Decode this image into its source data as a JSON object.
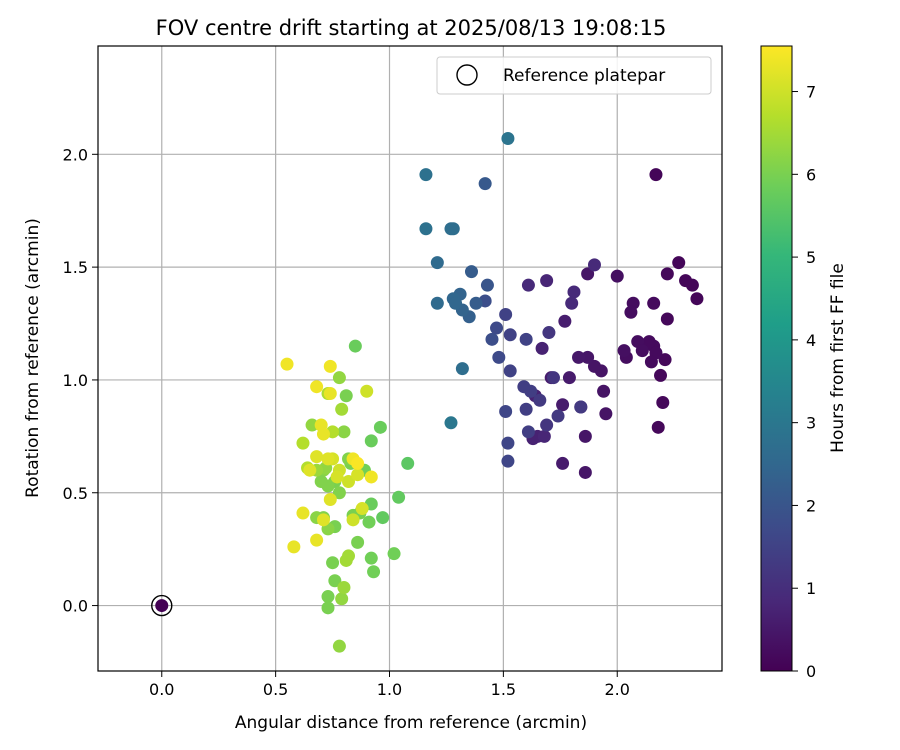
{
  "colors": {
    "grid": "#b0b0b0",
    "axis": "#000000",
    "cmap": [
      "#440154",
      "#482878",
      "#3e4989",
      "#31688e",
      "#26828e",
      "#1f9e89",
      "#35b779",
      "#6ece58",
      "#b5de2b",
      "#fde725"
    ]
  },
  "chart_data": {
    "type": "scatter",
    "title": "FOV centre drift starting at 2025/08/13 19:08:15",
    "xlabel": "Angular distance from reference (arcmin)",
    "ylabel": "Rotation from reference (arcmin)",
    "xlim": [
      -0.28,
      2.46
    ],
    "ylim": [
      -0.29,
      2.48
    ],
    "xticks": [
      0.0,
      0.5,
      1.0,
      1.5,
      2.0
    ],
    "yticks": [
      0.0,
      0.5,
      1.0,
      1.5,
      2.0
    ],
    "xtick_labels": [
      "0.0",
      "0.5",
      "1.0",
      "1.5",
      "2.0"
    ],
    "ytick_labels": [
      "0.0",
      "0.5",
      "1.0",
      "1.5",
      "2.0"
    ],
    "grid": true,
    "legend": {
      "placement": "top-right",
      "entries": [
        "Reference platepar"
      ]
    },
    "colorbar": {
      "label": "Hours from first FF file",
      "range": [
        0,
        7.55
      ],
      "ticks": [
        0,
        1,
        2,
        3,
        4,
        5,
        6,
        7
      ],
      "tick_labels": [
        "0",
        "1",
        "2",
        "3",
        "4",
        "5",
        "6",
        "7"
      ]
    },
    "reference_point": {
      "x": 0.0,
      "y": 0.0
    },
    "points": [
      {
        "x": 0.0,
        "y": 0.0,
        "t": 0.0
      },
      {
        "x": 2.17,
        "y": 1.91,
        "t": 0.1
      },
      {
        "x": 2.27,
        "y": 1.52,
        "t": 0.1
      },
      {
        "x": 2.3,
        "y": 1.44,
        "t": 0.1
      },
      {
        "x": 2.33,
        "y": 1.42,
        "t": 0.1
      },
      {
        "x": 2.35,
        "y": 1.36,
        "t": 0.1
      },
      {
        "x": 2.22,
        "y": 1.47,
        "t": 0.15
      },
      {
        "x": 2.22,
        "y": 1.27,
        "t": 0.15
      },
      {
        "x": 2.21,
        "y": 1.09,
        "t": 0.15
      },
      {
        "x": 2.19,
        "y": 1.02,
        "t": 0.15
      },
      {
        "x": 2.2,
        "y": 0.9,
        "t": 0.15
      },
      {
        "x": 2.18,
        "y": 0.79,
        "t": 0.15
      },
      {
        "x": 2.16,
        "y": 1.15,
        "t": 0.2
      },
      {
        "x": 2.17,
        "y": 1.12,
        "t": 0.2
      },
      {
        "x": 2.15,
        "y": 1.08,
        "t": 0.2
      },
      {
        "x": 2.14,
        "y": 1.17,
        "t": 0.2
      },
      {
        "x": 2.16,
        "y": 1.34,
        "t": 0.2
      },
      {
        "x": 2.09,
        "y": 1.17,
        "t": 0.25
      },
      {
        "x": 2.07,
        "y": 1.34,
        "t": 0.25
      },
      {
        "x": 2.06,
        "y": 1.3,
        "t": 0.25
      },
      {
        "x": 2.04,
        "y": 1.1,
        "t": 0.25
      },
      {
        "x": 2.11,
        "y": 1.13,
        "t": 0.25
      },
      {
        "x": 2.03,
        "y": 1.13,
        "t": 0.3
      },
      {
        "x": 2.0,
        "y": 1.46,
        "t": 0.3
      },
      {
        "x": 1.95,
        "y": 0.85,
        "t": 0.4
      },
      {
        "x": 1.94,
        "y": 0.95,
        "t": 0.4
      },
      {
        "x": 1.93,
        "y": 1.04,
        "t": 0.4
      },
      {
        "x": 1.9,
        "y": 1.06,
        "t": 0.4
      },
      {
        "x": 1.87,
        "y": 1.1,
        "t": 0.45
      },
      {
        "x": 1.87,
        "y": 1.47,
        "t": 0.45
      },
      {
        "x": 1.86,
        "y": 0.75,
        "t": 0.45
      },
      {
        "x": 1.86,
        "y": 0.59,
        "t": 0.45
      },
      {
        "x": 1.84,
        "y": 0.88,
        "t": 0.5
      },
      {
        "x": 1.83,
        "y": 1.1,
        "t": 0.5
      },
      {
        "x": 1.79,
        "y": 1.01,
        "t": 0.55
      },
      {
        "x": 1.76,
        "y": 0.89,
        "t": 0.55
      },
      {
        "x": 1.76,
        "y": 0.63,
        "t": 0.55
      },
      {
        "x": 1.77,
        "y": 1.26,
        "t": 0.6
      },
      {
        "x": 1.71,
        "y": 1.01,
        "t": 0.6
      },
      {
        "x": 1.65,
        "y": 0.75,
        "t": 0.7
      },
      {
        "x": 1.64,
        "y": 0.93,
        "t": 0.7
      },
      {
        "x": 1.63,
        "y": 0.74,
        "t": 0.7
      },
      {
        "x": 1.67,
        "y": 1.14,
        "t": 0.7
      },
      {
        "x": 1.69,
        "y": 1.44,
        "t": 0.8
      },
      {
        "x": 1.68,
        "y": 0.75,
        "t": 0.8
      },
      {
        "x": 1.61,
        "y": 1.42,
        "t": 0.9
      },
      {
        "x": 1.9,
        "y": 1.51,
        "t": 0.9
      },
      {
        "x": 1.81,
        "y": 1.39,
        "t": 0.9
      },
      {
        "x": 1.8,
        "y": 1.34,
        "t": 0.9
      },
      {
        "x": 1.7,
        "y": 1.21,
        "t": 1.2
      },
      {
        "x": 1.69,
        "y": 0.8,
        "t": 1.2
      },
      {
        "x": 1.72,
        "y": 1.01,
        "t": 1.2
      },
      {
        "x": 1.74,
        "y": 0.84,
        "t": 1.3
      },
      {
        "x": 1.66,
        "y": 0.91,
        "t": 1.3
      },
      {
        "x": 1.84,
        "y": 0.88,
        "t": 1.3
      },
      {
        "x": 1.62,
        "y": 0.95,
        "t": 1.4
      },
      {
        "x": 1.59,
        "y": 0.97,
        "t": 1.4
      },
      {
        "x": 1.61,
        "y": 0.77,
        "t": 1.4
      },
      {
        "x": 1.6,
        "y": 0.87,
        "t": 1.4
      },
      {
        "x": 1.6,
        "y": 1.18,
        "t": 1.5
      },
      {
        "x": 1.53,
        "y": 1.04,
        "t": 1.5
      },
      {
        "x": 1.53,
        "y": 1.2,
        "t": 1.5
      },
      {
        "x": 1.51,
        "y": 1.29,
        "t": 1.5
      },
      {
        "x": 1.52,
        "y": 0.72,
        "t": 1.6
      },
      {
        "x": 1.52,
        "y": 0.64,
        "t": 1.6
      },
      {
        "x": 1.51,
        "y": 0.86,
        "t": 1.6
      },
      {
        "x": 1.48,
        "y": 1.1,
        "t": 1.7
      },
      {
        "x": 1.47,
        "y": 1.23,
        "t": 1.7
      },
      {
        "x": 1.45,
        "y": 1.18,
        "t": 1.8
      },
      {
        "x": 1.42,
        "y": 1.35,
        "t": 1.8
      },
      {
        "x": 1.43,
        "y": 1.42,
        "t": 2.0
      },
      {
        "x": 1.42,
        "y": 1.87,
        "t": 2.1
      },
      {
        "x": 1.38,
        "y": 1.34,
        "t": 2.2
      },
      {
        "x": 1.36,
        "y": 1.48,
        "t": 2.2
      },
      {
        "x": 1.35,
        "y": 1.28,
        "t": 2.3
      },
      {
        "x": 1.31,
        "y": 1.38,
        "t": 2.4
      },
      {
        "x": 1.32,
        "y": 1.31,
        "t": 2.4
      },
      {
        "x": 1.28,
        "y": 1.36,
        "t": 2.5
      },
      {
        "x": 1.29,
        "y": 1.34,
        "t": 2.5
      },
      {
        "x": 1.21,
        "y": 1.52,
        "t": 2.6
      },
      {
        "x": 1.21,
        "y": 1.34,
        "t": 2.6
      },
      {
        "x": 1.27,
        "y": 1.67,
        "t": 2.7
      },
      {
        "x": 1.28,
        "y": 1.67,
        "t": 2.7
      },
      {
        "x": 1.32,
        "y": 1.05,
        "t": 2.7
      },
      {
        "x": 1.16,
        "y": 1.91,
        "t": 2.8
      },
      {
        "x": 1.16,
        "y": 1.67,
        "t": 2.8
      },
      {
        "x": 1.52,
        "y": 2.07,
        "t": 2.9
      },
      {
        "x": 1.27,
        "y": 0.81,
        "t": 3.0
      },
      {
        "x": 1.08,
        "y": 0.63,
        "t": 5.6
      },
      {
        "x": 1.04,
        "y": 0.48,
        "t": 5.7
      },
      {
        "x": 1.02,
        "y": 0.23,
        "t": 5.9
      },
      {
        "x": 0.96,
        "y": 0.79,
        "t": 5.8
      },
      {
        "x": 0.97,
        "y": 0.39,
        "t": 5.7
      },
      {
        "x": 0.92,
        "y": 0.73,
        "t": 5.8
      },
      {
        "x": 0.92,
        "y": 0.45,
        "t": 5.8
      },
      {
        "x": 0.91,
        "y": 0.37,
        "t": 5.9
      },
      {
        "x": 0.92,
        "y": 0.21,
        "t": 5.9
      },
      {
        "x": 0.93,
        "y": 0.15,
        "t": 5.9
      },
      {
        "x": 0.85,
        "y": 1.15,
        "t": 5.8
      },
      {
        "x": 0.81,
        "y": 0.93,
        "t": 6.0
      },
      {
        "x": 0.89,
        "y": 0.6,
        "t": 5.9
      },
      {
        "x": 0.86,
        "y": 0.28,
        "t": 6.0
      },
      {
        "x": 0.84,
        "y": 0.4,
        "t": 6.0
      },
      {
        "x": 0.87,
        "y": 0.41,
        "t": 6.0
      },
      {
        "x": 0.83,
        "y": 0.63,
        "t": 6.0
      },
      {
        "x": 0.82,
        "y": 0.65,
        "t": 6.1
      },
      {
        "x": 0.8,
        "y": 0.77,
        "t": 6.2
      },
      {
        "x": 0.79,
        "y": 0.87,
        "t": 6.5
      },
      {
        "x": 0.78,
        "y": 1.01,
        "t": 6.3
      },
      {
        "x": 0.76,
        "y": 0.55,
        "t": 6.0
      },
      {
        "x": 0.78,
        "y": 0.5,
        "t": 6.1
      },
      {
        "x": 0.76,
        "y": 0.35,
        "t": 6.0
      },
      {
        "x": 0.75,
        "y": 0.19,
        "t": 6.0
      },
      {
        "x": 0.76,
        "y": 0.11,
        "t": 6.0
      },
      {
        "x": 0.73,
        "y": 0.04,
        "t": 6.0
      },
      {
        "x": 0.73,
        "y": -0.01,
        "t": 6.0
      },
      {
        "x": 0.73,
        "y": 0.34,
        "t": 6.2
      },
      {
        "x": 0.71,
        "y": 0.39,
        "t": 6.1
      },
      {
        "x": 0.73,
        "y": 0.53,
        "t": 6.1
      },
      {
        "x": 0.71,
        "y": 0.6,
        "t": 6.2
      },
      {
        "x": 0.72,
        "y": 0.61,
        "t": 6.3
      },
      {
        "x": 0.78,
        "y": -0.18,
        "t": 6.3
      },
      {
        "x": 0.79,
        "y": 0.03,
        "t": 6.3
      },
      {
        "x": 0.8,
        "y": 0.08,
        "t": 6.4
      },
      {
        "x": 0.82,
        "y": 0.22,
        "t": 6.5
      },
      {
        "x": 0.81,
        "y": 0.2,
        "t": 6.5
      },
      {
        "x": 0.7,
        "y": 0.55,
        "t": 6.1
      },
      {
        "x": 0.68,
        "y": 0.39,
        "t": 6.2
      },
      {
        "x": 0.68,
        "y": 0.6,
        "t": 6.4
      },
      {
        "x": 0.66,
        "y": 0.8,
        "t": 6.3
      },
      {
        "x": 0.73,
        "y": 0.94,
        "t": 6.6
      },
      {
        "x": 0.75,
        "y": 0.77,
        "t": 6.7
      },
      {
        "x": 0.64,
        "y": 0.61,
        "t": 6.7
      },
      {
        "x": 0.62,
        "y": 0.72,
        "t": 6.7
      },
      {
        "x": 0.9,
        "y": 0.95,
        "t": 7.0
      },
      {
        "x": 0.84,
        "y": 0.38,
        "t": 7.0
      },
      {
        "x": 0.82,
        "y": 0.55,
        "t": 7.0
      },
      {
        "x": 0.78,
        "y": 0.6,
        "t": 7.0
      },
      {
        "x": 0.75,
        "y": 0.65,
        "t": 7.1
      },
      {
        "x": 0.77,
        "y": 0.57,
        "t": 7.1
      },
      {
        "x": 0.88,
        "y": 0.43,
        "t": 7.1
      },
      {
        "x": 0.86,
        "y": 0.58,
        "t": 7.1
      },
      {
        "x": 0.74,
        "y": 0.94,
        "t": 7.3
      },
      {
        "x": 0.74,
        "y": 1.06,
        "t": 7.4
      },
      {
        "x": 0.68,
        "y": 0.97,
        "t": 7.4
      },
      {
        "x": 0.7,
        "y": 0.8,
        "t": 7.3
      },
      {
        "x": 0.71,
        "y": 0.76,
        "t": 7.3
      },
      {
        "x": 0.73,
        "y": 0.65,
        "t": 7.2
      },
      {
        "x": 0.65,
        "y": 0.6,
        "t": 7.2
      },
      {
        "x": 0.68,
        "y": 0.66,
        "t": 7.2
      },
      {
        "x": 0.74,
        "y": 0.47,
        "t": 7.2
      },
      {
        "x": 0.71,
        "y": 0.38,
        "t": 7.2
      },
      {
        "x": 0.68,
        "y": 0.29,
        "t": 7.3
      },
      {
        "x": 0.62,
        "y": 0.41,
        "t": 7.3
      },
      {
        "x": 0.58,
        "y": 0.26,
        "t": 7.3
      },
      {
        "x": 0.55,
        "y": 1.07,
        "t": 7.4
      },
      {
        "x": 0.84,
        "y": 0.65,
        "t": 7.4
      },
      {
        "x": 0.92,
        "y": 0.57,
        "t": 7.4
      },
      {
        "x": 0.86,
        "y": 0.63,
        "t": 7.5
      }
    ]
  }
}
